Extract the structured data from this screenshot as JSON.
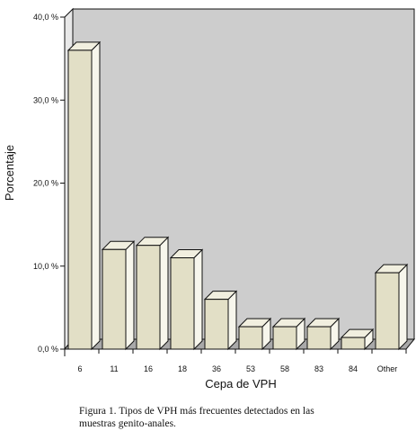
{
  "chart_data": {
    "type": "bar",
    "categories": [
      "6",
      "11",
      "16",
      "18",
      "36",
      "53",
      "58",
      "83",
      "84",
      "Other"
    ],
    "values": [
      36.0,
      12.0,
      12.5,
      11.0,
      6.0,
      2.7,
      2.7,
      2.7,
      1.4,
      9.2
    ],
    "ylim": [
      0,
      40
    ],
    "yticks": [
      0,
      10,
      20,
      30,
      40
    ],
    "ytick_labels": [
      "0,0 %",
      "10,0 %",
      "20,0 %",
      "30,0 %",
      "40,0 %"
    ],
    "xlabel": "Cepa de VPH",
    "ylabel": "Porcentaje",
    "grid": false,
    "style": "3d-bar",
    "colors": {
      "bar_front": "#e2dfc6",
      "bar_top": "#f1efdf",
      "bar_side": "#f7f6ec",
      "back_wall": "#cdcdcd",
      "floor": "#a9a9a9",
      "outline": "#111111"
    }
  },
  "caption": {
    "line1": "Figura 1.  Tipos de VPH más frecuentes detectados en las",
    "line2": "muestras genito-anales."
  }
}
